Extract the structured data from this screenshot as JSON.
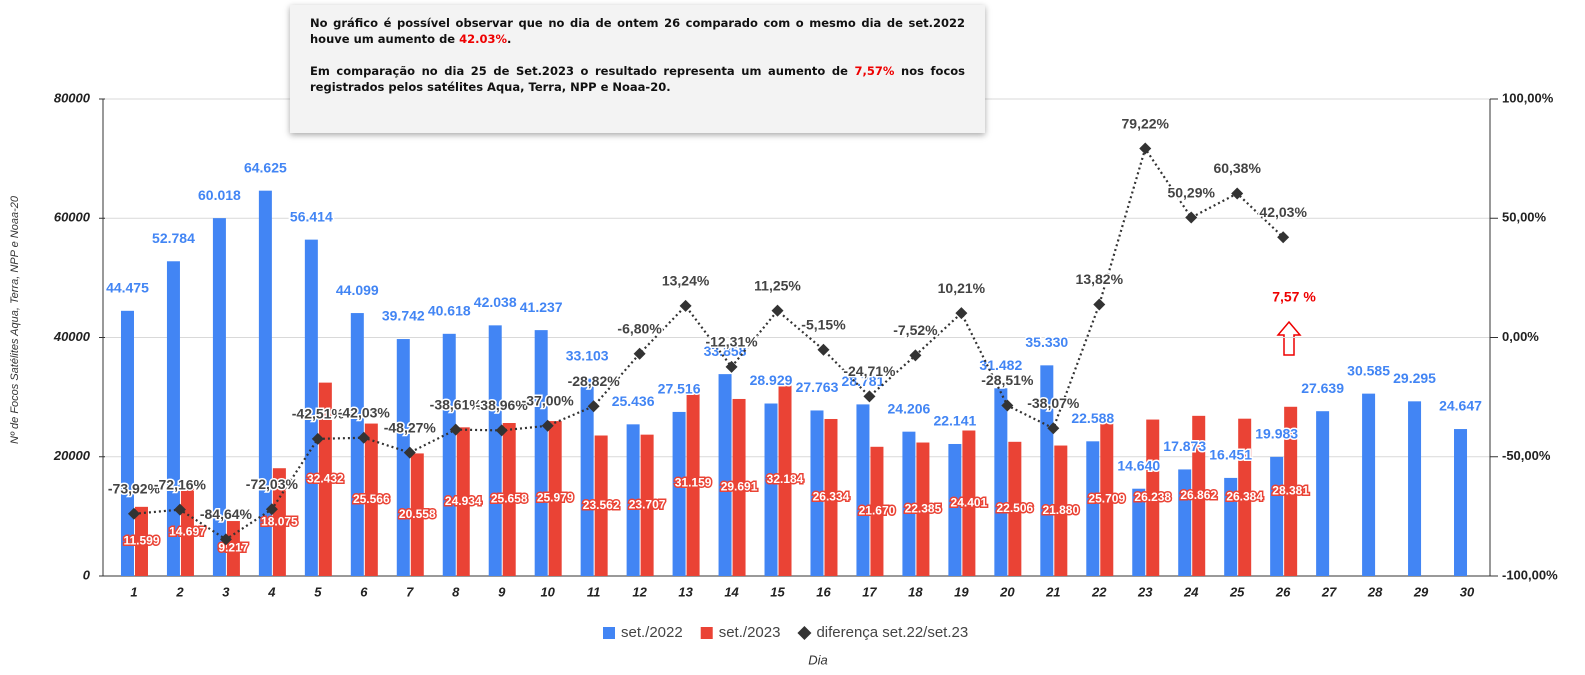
{
  "chart_data": {
    "type": "bar",
    "xlabel": "Dia",
    "ylabel": "Nº de Focos Satélites Aqua, Terra, NPP e Noaa-20",
    "categories": [
      "1",
      "2",
      "3",
      "4",
      "5",
      "6",
      "7",
      "8",
      "9",
      "10",
      "11",
      "12",
      "13",
      "14",
      "15",
      "16",
      "17",
      "18",
      "19",
      "20",
      "21",
      "22",
      "23",
      "24",
      "25",
      "26",
      "27",
      "28",
      "29",
      "30"
    ],
    "series": [
      {
        "name": "set./2022",
        "color": "#4285f4",
        "type": "bar",
        "values": [
          44475,
          52784,
          60018,
          64625,
          56414,
          44099,
          39742,
          40618,
          42038,
          41237,
          33103,
          25436,
          27516,
          33858,
          28929,
          27763,
          28781,
          24206,
          22141,
          31482,
          35330,
          22588,
          14640,
          17873,
          16451,
          19983,
          27639,
          30585,
          29295,
          24647
        ],
        "value_labels": [
          "44.475",
          "52.784",
          "60.018",
          "64.625",
          "56.414",
          "44.099",
          "39.742",
          "40.618",
          "42.038",
          "41.237",
          "33.103",
          "25.436",
          "27.516",
          "33.858",
          "28.929",
          "27.763",
          "28.781",
          "24.206",
          "22.141",
          "31.482",
          "35.330",
          "22.588",
          "14.640",
          "17.873",
          "16.451",
          "19.983",
          "27.639",
          "30.585",
          "29.295",
          "24.647"
        ]
      },
      {
        "name": "set./2023",
        "color": "#ea4335",
        "type": "bar",
        "values": [
          11599,
          14697,
          9217,
          18075,
          32432,
          25566,
          20558,
          24934,
          25658,
          25979,
          23562,
          23707,
          31159,
          29691,
          32184,
          26334,
          21670,
          22385,
          24401,
          22506,
          21880,
          25709,
          26238,
          26862,
          26384,
          28381,
          null,
          null,
          null,
          null
        ],
        "value_labels": [
          "11.599",
          "14.697",
          "9.217",
          "18.075",
          "32.432",
          "25.566",
          "20.558",
          "24.934",
          "25.658",
          "25.979",
          "23.562",
          "23.707",
          "31.159",
          "29.691",
          "32.184",
          "26.334",
          "21.670",
          "22.385",
          "24.401",
          "22.506",
          "21.880",
          "25.709",
          "26.238",
          "26.862",
          "26.384",
          "28.381",
          null,
          null,
          null,
          null
        ]
      },
      {
        "name": "diferença set.22/set.23",
        "color": "#333333",
        "type": "line",
        "axis": "y2",
        "values": [
          -73.92,
          -72.16,
          -84.64,
          -72.03,
          -42.51,
          -42.03,
          -48.27,
          -38.61,
          -38.96,
          -37.0,
          -28.82,
          -6.8,
          13.24,
          -12.31,
          11.25,
          -5.15,
          -24.71,
          -7.52,
          10.21,
          -28.51,
          -38.07,
          13.82,
          79.22,
          50.29,
          60.38,
          42.03,
          null,
          null,
          null,
          null
        ],
        "value_labels": [
          "-73,92%",
          "-72,16%",
          "-84,64%",
          "-72,03%",
          "-42,51%",
          "-42,03%",
          "-48,27%",
          "-38,61%",
          "-38,96%",
          "-37,00%",
          "-28,82%",
          "-6,80%",
          "13,24%",
          "-12,31%",
          "11,25%",
          "-5,15%",
          "-24,71%",
          "-7,52%",
          "10,21%",
          "-28,51%",
          "-38,07%",
          "13,82%",
          "79,22%",
          "50,29%",
          "60,38%",
          "42,03%",
          null,
          null,
          null,
          null
        ]
      }
    ],
    "ylim": [
      0,
      80000
    ],
    "yticks": [
      0,
      20000,
      40000,
      60000,
      80000
    ],
    "y2lim": [
      -100,
      100
    ],
    "y2ticks": [
      {
        "value": -100,
        "label": "-100,00%"
      },
      {
        "value": -50,
        "label": "-50,00%"
      },
      {
        "value": 0,
        "label": "0,00%"
      },
      {
        "value": 50,
        "label": "50,00%"
      },
      {
        "value": 100,
        "label": "100,00%"
      }
    ],
    "grid": true,
    "legend": "bottom",
    "callout": "7,57 %",
    "annotation_box": {
      "paragraphs": [
        {
          "before": "No gráfico é possível observar que no dia de ontem 26 comparado com o mesmo dia de set.2022 houve um aumento de ",
          "highlight": "42.03%",
          "after": "."
        },
        {
          "before": "Em comparação no dia 25 de Set.2023 o resultado representa um aumento de ",
          "highlight": "7,57%",
          "after": " nos focos registrados pelos satélites Aqua, Terra, NPP e Noaa-20."
        }
      ]
    }
  }
}
